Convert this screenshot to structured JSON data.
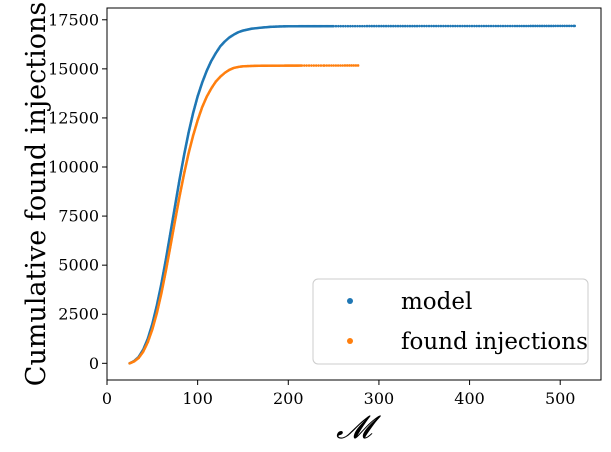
{
  "chart_data": {
    "type": "scatter",
    "xlabel": "𝓜",
    "ylabel": "Cumulative found injections",
    "xlim": [
      0,
      545
    ],
    "ylim": [
      -850,
      18100
    ],
    "xticks": [
      0,
      100,
      200,
      300,
      400,
      500
    ],
    "yticks": [
      0,
      2500,
      5000,
      7500,
      10000,
      12500,
      15000,
      17500
    ],
    "grid": false,
    "legend_position": "lower-right",
    "colors": {
      "model": "#1f77b4",
      "found": "#ff7f0e"
    },
    "series": [
      {
        "name": "model",
        "color": "#1f77b4",
        "points": [
          [
            25,
            0
          ],
          [
            30,
            120
          ],
          [
            35,
            330
          ],
          [
            40,
            700
          ],
          [
            45,
            1250
          ],
          [
            50,
            2000
          ],
          [
            55,
            2950
          ],
          [
            60,
            4050
          ],
          [
            65,
            5300
          ],
          [
            70,
            6650
          ],
          [
            75,
            8000
          ],
          [
            80,
            9350
          ],
          [
            85,
            10600
          ],
          [
            90,
            11750
          ],
          [
            95,
            12750
          ],
          [
            100,
            13600
          ],
          [
            105,
            14300
          ],
          [
            110,
            14900
          ],
          [
            115,
            15400
          ],
          [
            120,
            15800
          ],
          [
            125,
            16150
          ],
          [
            130,
            16400
          ],
          [
            135,
            16600
          ],
          [
            140,
            16750
          ],
          [
            145,
            16870
          ],
          [
            150,
            16950
          ],
          [
            160,
            17050
          ],
          [
            170,
            17100
          ],
          [
            180,
            17140
          ],
          [
            190,
            17160
          ],
          [
            200,
            17170
          ],
          [
            250,
            17175
          ],
          [
            300,
            17178
          ],
          [
            350,
            17180
          ],
          [
            400,
            17182
          ],
          [
            450,
            17183
          ],
          [
            470,
            17184
          ],
          [
            480,
            17185
          ],
          [
            490,
            17186
          ],
          [
            500,
            17187
          ],
          [
            516,
            17188
          ]
        ]
      },
      {
        "name": "found injections",
        "color": "#ff7f0e",
        "points": [
          [
            25,
            0
          ],
          [
            30,
            100
          ],
          [
            35,
            280
          ],
          [
            40,
            600
          ],
          [
            45,
            1080
          ],
          [
            50,
            1730
          ],
          [
            55,
            2560
          ],
          [
            60,
            3570
          ],
          [
            65,
            4730
          ],
          [
            70,
            5980
          ],
          [
            75,
            7250
          ],
          [
            80,
            8500
          ],
          [
            85,
            9650
          ],
          [
            90,
            10700
          ],
          [
            95,
            11600
          ],
          [
            100,
            12380
          ],
          [
            105,
            13050
          ],
          [
            110,
            13580
          ],
          [
            115,
            14000
          ],
          [
            120,
            14350
          ],
          [
            125,
            14600
          ],
          [
            130,
            14800
          ],
          [
            135,
            14950
          ],
          [
            140,
            15050
          ],
          [
            145,
            15100
          ],
          [
            150,
            15130
          ],
          [
            160,
            15150
          ],
          [
            170,
            15160
          ],
          [
            180,
            15162
          ],
          [
            190,
            15164
          ],
          [
            200,
            15166
          ],
          [
            215,
            15168
          ],
          [
            240,
            15170
          ],
          [
            255,
            15171
          ],
          [
            265,
            15172
          ],
          [
            277,
            15173
          ]
        ]
      }
    ]
  }
}
